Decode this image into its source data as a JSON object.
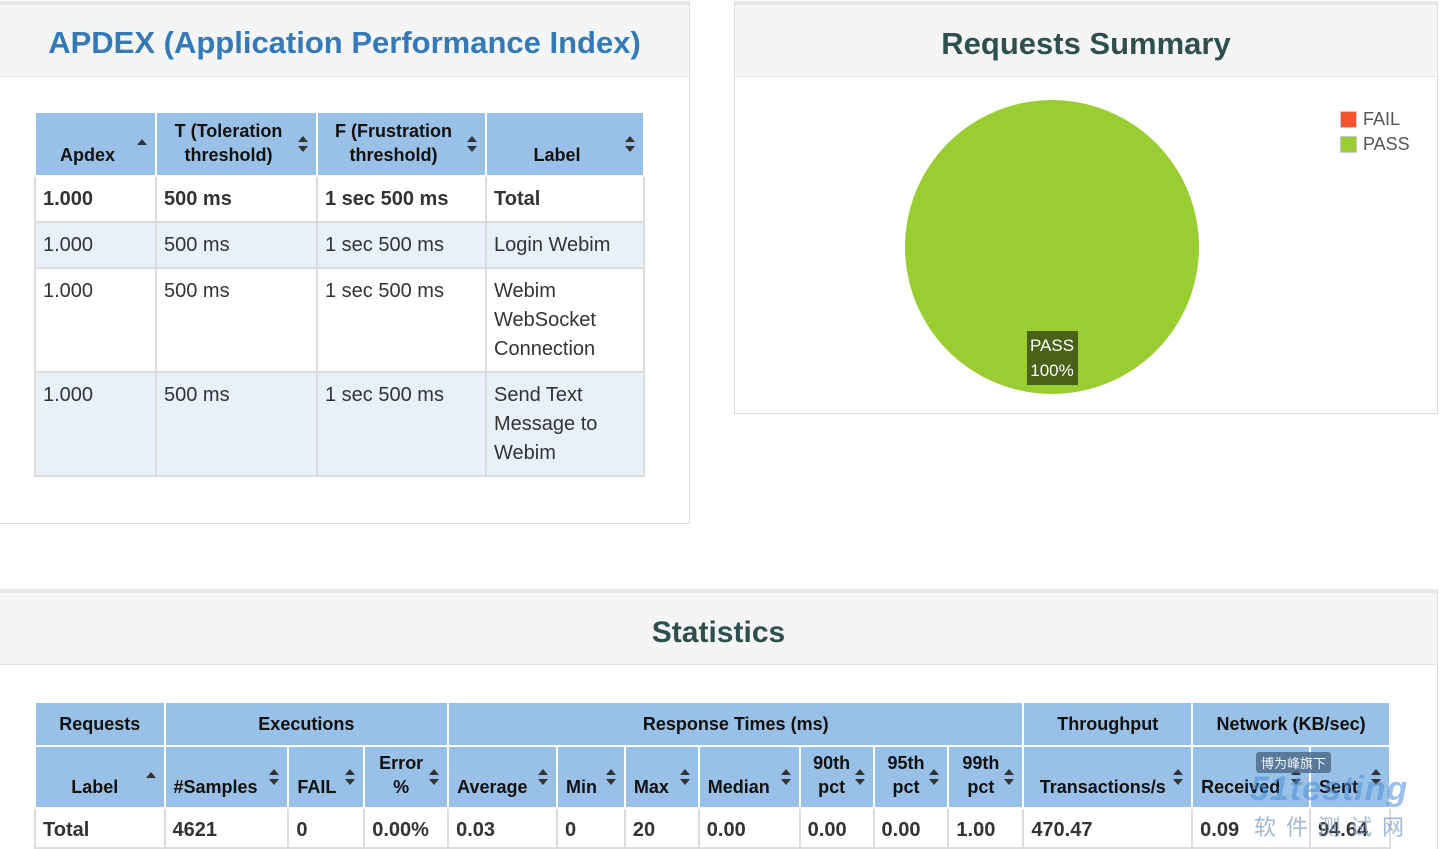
{
  "apdex": {
    "title": "APDEX (Application Performance Index)",
    "headers": [
      "Apdex",
      "T (Toleration threshold)",
      "F (Frustration threshold)",
      "Label"
    ],
    "rows": [
      {
        "apdex": "1.000",
        "t": "500 ms",
        "f": "1 sec 500 ms",
        "label": "Total"
      },
      {
        "apdex": "1.000",
        "t": "500 ms",
        "f": "1 sec 500 ms",
        "label": "Login Webim"
      },
      {
        "apdex": "1.000",
        "t": "500 ms",
        "f": "1 sec 500 ms",
        "label": "Webim WebSocket Connection"
      },
      {
        "apdex": "1.000",
        "t": "500 ms",
        "f": "1 sec 500 ms",
        "label": "Send Text Message to Webim"
      }
    ]
  },
  "summary": {
    "title": "Requests Summary",
    "legend": [
      {
        "name": "FAIL",
        "color": "#f4562e"
      },
      {
        "name": "PASS",
        "color": "#9acd32"
      }
    ],
    "pie_label_name": "PASS",
    "pie_label_pct": "100%"
  },
  "chart_data": {
    "type": "pie",
    "title": "Requests Summary",
    "categories": [
      "FAIL",
      "PASS"
    ],
    "values": [
      0,
      100
    ],
    "colors": [
      "#f4562e",
      "#9acd32"
    ],
    "legend": "top-right"
  },
  "statistics": {
    "title": "Statistics",
    "groups": [
      "Requests",
      "Executions",
      "Response Times (ms)",
      "Throughput",
      "Network (KB/sec)"
    ],
    "columns": [
      "Label",
      "#Samples",
      "FAIL",
      "Error %",
      "Average",
      "Min",
      "Max",
      "Median",
      "90th pct",
      "95th pct",
      "99th pct",
      "Transactions/s",
      "Received",
      "Sent"
    ],
    "total_row": [
      "Total",
      "4621",
      "0",
      "0.00%",
      "0.03",
      "0",
      "20",
      "0.00",
      "0.00",
      "0.00",
      "1.00",
      "470.47",
      "0.09",
      "94.64"
    ]
  },
  "watermark": {
    "tag": "博为峰旗下",
    "brand": "51testing",
    "cn": "软件测试网"
  }
}
